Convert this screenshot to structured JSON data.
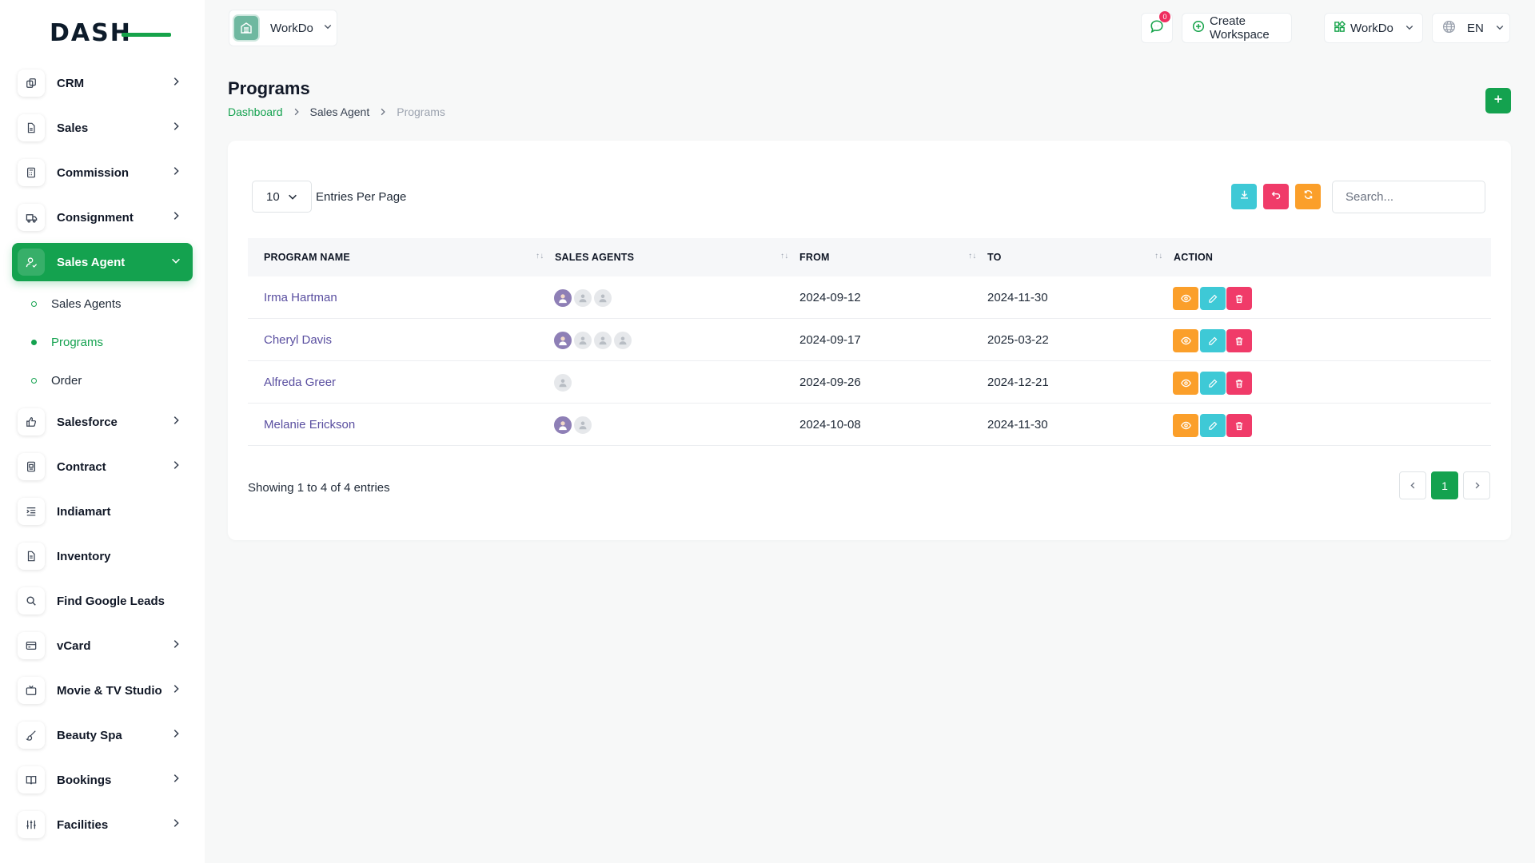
{
  "brand": {
    "logo_text": "DASH"
  },
  "workspace_switch": {
    "name": "WorkDo"
  },
  "header": {
    "chat_badge": "0",
    "create_workspace": "Create Workspace",
    "workspace_menu": "WorkDo",
    "language": "EN"
  },
  "sidebar": {
    "items": [
      {
        "label": "CRM",
        "icon": "layers-icon",
        "has_children": true
      },
      {
        "label": "Sales",
        "icon": "file-icon",
        "has_children": true
      },
      {
        "label": "Commission",
        "icon": "calculator-icon",
        "has_children": true
      },
      {
        "label": "Consignment",
        "icon": "truck-icon",
        "has_children": true
      },
      {
        "label": "Sales Agent",
        "icon": "user-check-icon",
        "has_children": true,
        "active": true,
        "children": [
          {
            "label": "Sales Agents"
          },
          {
            "label": "Programs",
            "current": true
          },
          {
            "label": "Order"
          }
        ]
      },
      {
        "label": "Salesforce",
        "icon": "thumbs-up-icon",
        "has_children": true
      },
      {
        "label": "Contract",
        "icon": "contract-icon",
        "has_children": true
      },
      {
        "label": "Indiamart",
        "icon": "list-indent-icon",
        "has_children": false
      },
      {
        "label": "Inventory",
        "icon": "file-text-icon",
        "has_children": false
      },
      {
        "label": "Find Google Leads",
        "icon": "search-icon",
        "has_children": false
      },
      {
        "label": "vCard",
        "icon": "card-icon",
        "has_children": true
      },
      {
        "label": "Movie & TV Studio",
        "icon": "tv-icon",
        "has_children": true
      },
      {
        "label": "Beauty Spa",
        "icon": "brush-icon",
        "has_children": true
      },
      {
        "label": "Bookings",
        "icon": "book-icon",
        "has_children": true
      },
      {
        "label": "Facilities",
        "icon": "sliders-icon",
        "has_children": true
      }
    ]
  },
  "page": {
    "title": "Programs",
    "breadcrumb": [
      "Dashboard",
      "Sales Agent",
      "Programs"
    ]
  },
  "table_controls": {
    "per_page": "10",
    "per_page_label": "Entries Per Page",
    "search_placeholder": "Search..."
  },
  "table": {
    "columns": [
      "PROGRAM NAME",
      "SALES AGENTS",
      "FROM",
      "TO",
      "ACTION"
    ],
    "rows": [
      {
        "program_name": "Irma Hartman",
        "agents": [
          "photo",
          "placeholder",
          "placeholder"
        ],
        "from": "2024-09-12",
        "to": "2024-11-30"
      },
      {
        "program_name": "Cheryl Davis",
        "agents": [
          "photo",
          "placeholder",
          "placeholder",
          "placeholder"
        ],
        "from": "2024-09-17",
        "to": "2025-03-22"
      },
      {
        "program_name": "Alfreda Greer",
        "agents": [
          "placeholder"
        ],
        "from": "2024-09-26",
        "to": "2024-12-21"
      },
      {
        "program_name": "Melanie Erickson",
        "agents": [
          "photo",
          "placeholder"
        ],
        "from": "2024-10-08",
        "to": "2024-11-30"
      }
    ]
  },
  "footer": {
    "showing": "Showing 1 to 4 of 4 entries",
    "current_page": "1"
  },
  "colors": {
    "primary": "#14a24f",
    "view": "#fb9f2a",
    "edit": "#3ec9d6",
    "delete": "#f03b69"
  }
}
